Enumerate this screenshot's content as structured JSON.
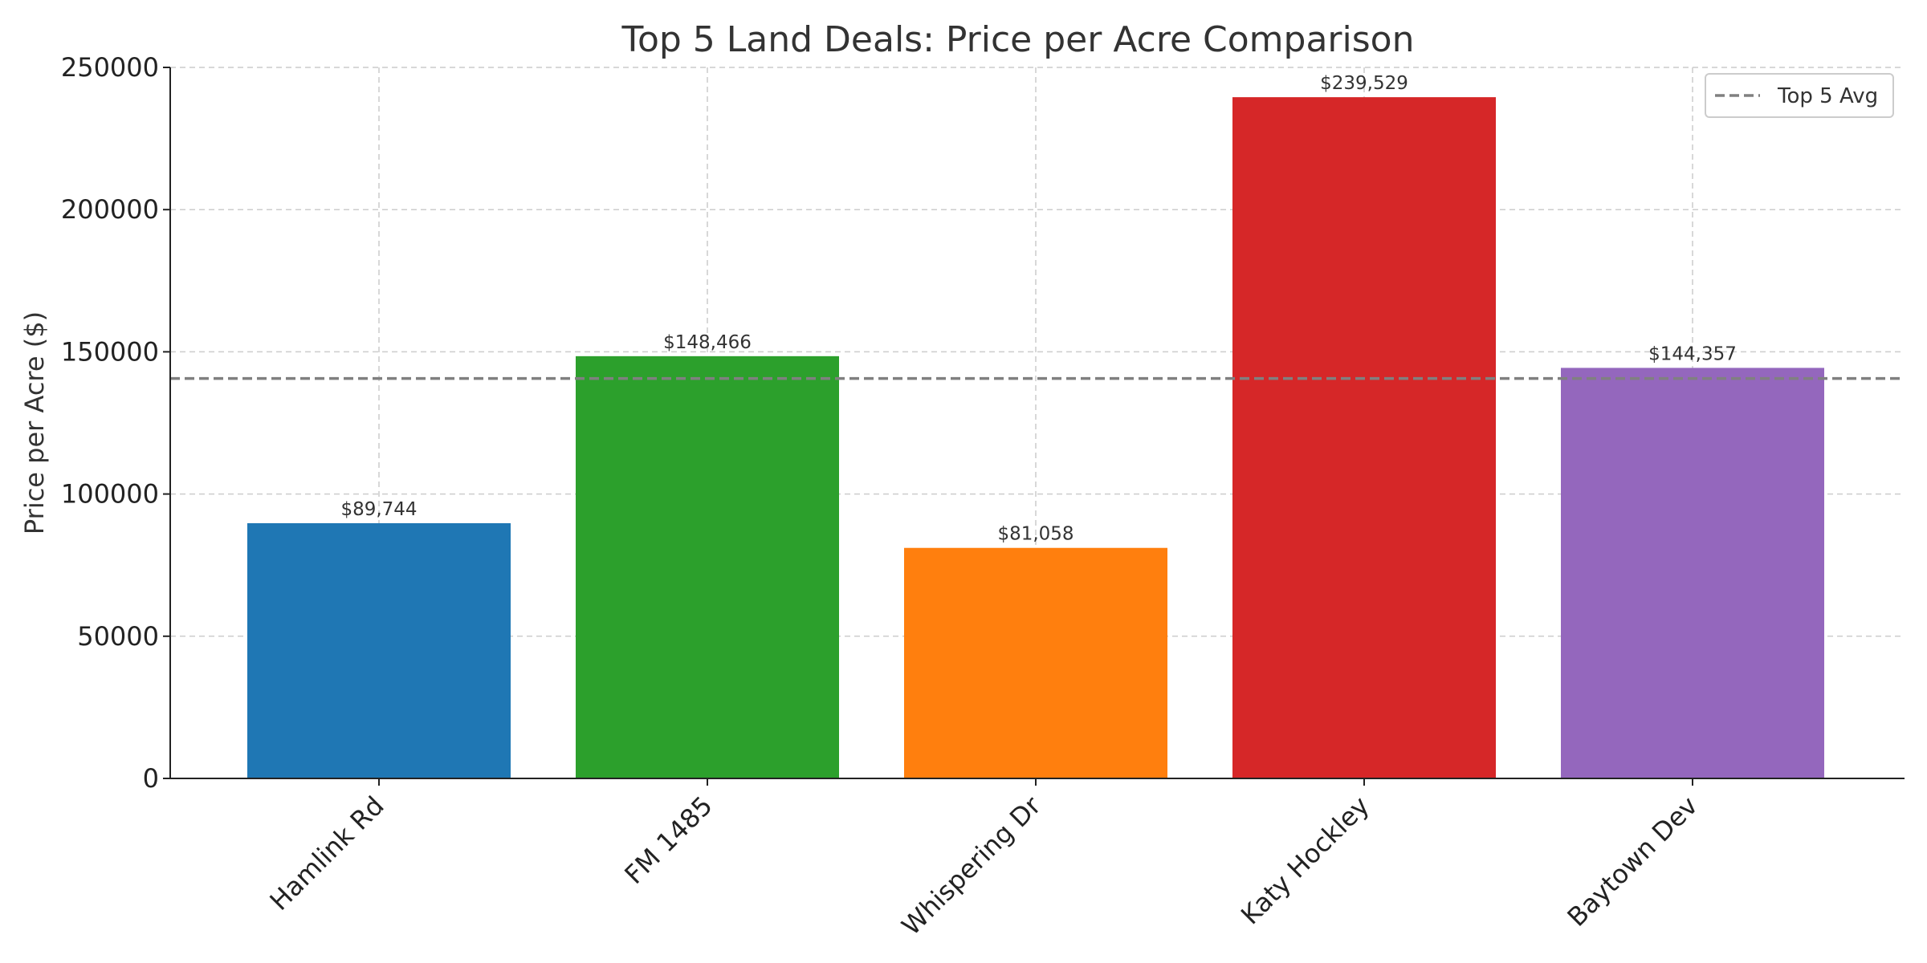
{
  "chart_data": {
    "type": "bar",
    "title": "Top 5 Land Deals: Price per Acre Comparison",
    "xlabel": "",
    "ylabel": "Price per Acre ($)",
    "categories": [
      "Hamlink Rd",
      "FM 1485",
      "Whispering Dr",
      "Katy Hockley",
      "Baytown Dev"
    ],
    "values": [
      89744,
      148466,
      81058,
      239529,
      144357
    ],
    "data_labels": [
      "$89,744",
      "$148,466",
      "$81,058",
      "$239,529",
      "$144,357"
    ],
    "colors": [
      "#1f77b4",
      "#2ca02c",
      "#ff7f0e",
      "#d62728",
      "#9467bd"
    ],
    "ylim": [
      0,
      250000
    ],
    "yticks": [
      0,
      50000,
      100000,
      150000,
      200000,
      250000
    ],
    "ytick_labels": [
      "0",
      "50000",
      "100000",
      "150000",
      "200000",
      "250000"
    ],
    "average": {
      "label": "Top 5 Avg",
      "value": 140631,
      "color": "#808080"
    },
    "grid": true,
    "legend": {
      "placement": "top-right",
      "entries": [
        "Top 5 Avg"
      ]
    }
  }
}
